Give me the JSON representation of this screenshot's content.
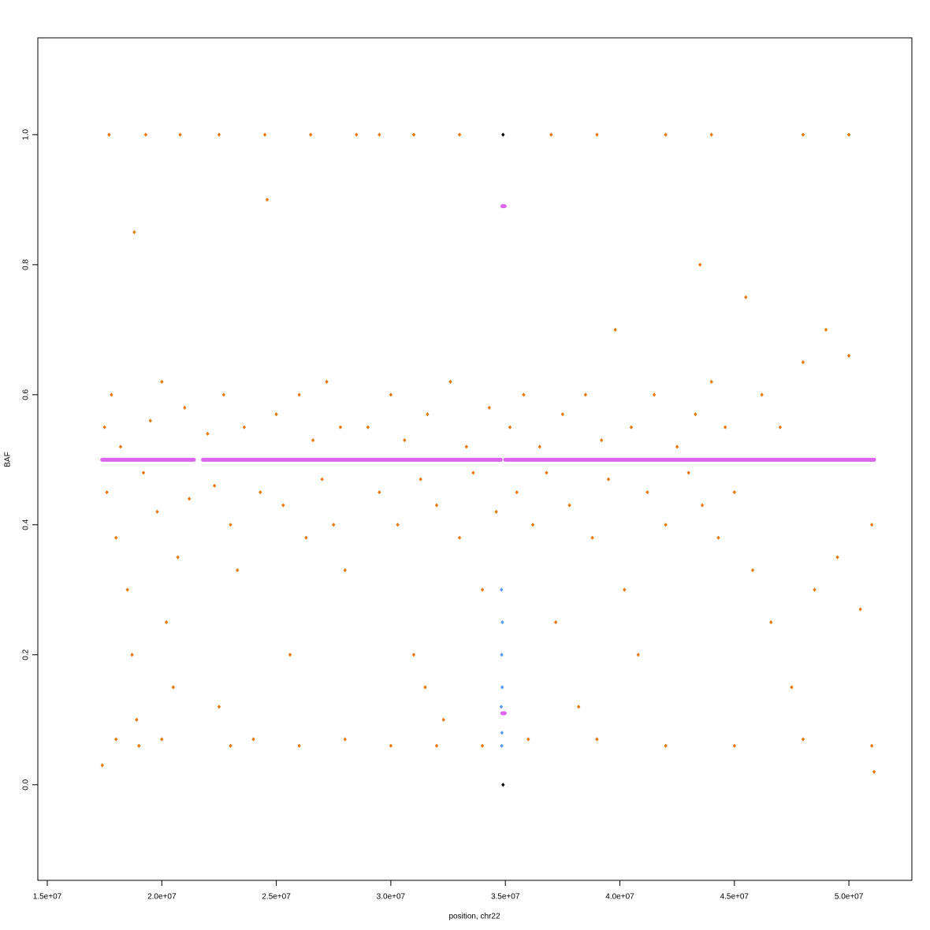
{
  "chart_data": {
    "type": "scatter",
    "xlabel": "position, chr22",
    "ylabel": "BAF",
    "xlim": [
      14587000,
      52750000
    ],
    "ylim": [
      -0.147,
      1.149
    ],
    "xticks": [
      {
        "value": 15000000.0,
        "label": "1.5e+07"
      },
      {
        "value": 20000000.0,
        "label": "2.0e+07"
      },
      {
        "value": 25000000.0,
        "label": "2.5e+07"
      },
      {
        "value": 30000000.0,
        "label": "3.0e+07"
      },
      {
        "value": 35000000.0,
        "label": "3.5e+07"
      },
      {
        "value": 40000000.0,
        "label": "4.0e+07"
      },
      {
        "value": 45000000.0,
        "label": "4.5e+07"
      },
      {
        "value": 50000000.0,
        "label": "5.0e+07"
      }
    ],
    "yticks": [
      {
        "value": 0,
        "label": "0.0"
      },
      0.2,
      0.4,
      0.6,
      0.8,
      {
        "value": 1,
        "label": "1.0"
      }
    ],
    "series": [
      {
        "color": "#e8780c",
        "x": [
          17500000.0,
          17600000.0,
          17800000.0,
          18000000.0,
          18200000.0,
          18500000.0,
          18700000.0,
          18800000.0,
          18900000.0,
          19000000.0,
          19200000.0,
          19500000.0,
          19800000.0,
          20000000.0,
          20200000.0,
          20500000.0,
          20700000.0,
          21000000.0,
          21200000.0,
          17700000.0,
          19300000.0,
          20800000.0,
          18000000.0,
          20000000.0,
          22000000.0,
          22300000.0,
          22500000.0,
          22700000.0,
          23000000.0,
          23300000.0,
          23600000.0,
          24000000.0,
          24300000.0,
          24600000.0,
          25000000.0,
          25300000.0,
          25600000.0,
          26000000.0,
          26300000.0,
          26600000.0,
          27000000.0,
          27200000.0,
          27500000.0,
          27800000.0,
          28000000.0,
          22500000.0,
          24500000.0,
          26500000.0,
          28500000.0,
          23000000.0,
          26000000.0,
          28000000.0,
          29000000.0,
          29500000.0,
          30000000.0,
          30300000.0,
          30600000.0,
          31000000.0,
          31300000.0,
          31600000.0,
          32000000.0,
          32300000.0,
          32600000.0,
          33000000.0,
          33300000.0,
          33600000.0,
          34000000.0,
          34300000.0,
          34600000.0,
          29500000.0,
          31000000.0,
          33000000.0,
          30000000.0,
          32000000.0,
          34000000.0,
          31500000.0,
          35200000.0,
          35500000.0,
          35800000.0,
          36200000.0,
          36500000.0,
          36800000.0,
          37200000.0,
          37500000.0,
          37800000.0,
          38200000.0,
          38500000.0,
          38800000.0,
          39200000.0,
          39500000.0,
          39800000.0,
          40200000.0,
          40500000.0,
          40800000.0,
          41200000.0,
          41500000.0,
          42000000.0,
          42500000.0,
          43000000.0,
          43300000.0,
          43600000.0,
          44000000.0,
          44300000.0,
          44600000.0,
          45000000.0,
          45500000.0,
          45800000.0,
          46200000.0,
          46600000.0,
          47000000.0,
          47500000.0,
          48000000.0,
          48500000.0,
          49000000.0,
          49500000.0,
          50000000.0,
          50500000.0,
          51000000.0,
          37000000.0,
          39000000.0,
          42000000.0,
          44000000.0,
          48000000.0,
          50000000.0,
          36000000.0,
          39000000.0,
          42000000.0,
          45000000.0,
          48000000.0,
          51000000.0,
          51100000.0,
          17400000.0,
          43500000.0
        ],
        "values": [
          0.55,
          0.45,
          0.6,
          0.38,
          0.52,
          0.3,
          0.2,
          0.85,
          0.1,
          0.06,
          0.48,
          0.56,
          0.42,
          0.62,
          0.25,
          0.15,
          0.35,
          0.58,
          0.44,
          1.0,
          1.0,
          1.0,
          0.07,
          0.07,
          0.54,
          0.46,
          0.12,
          0.6,
          0.4,
          0.33,
          0.55,
          0.07,
          0.45,
          0.9,
          0.57,
          0.43,
          0.2,
          0.6,
          0.38,
          0.53,
          0.47,
          0.62,
          0.4,
          0.55,
          0.33,
          1.0,
          1.0,
          1.0,
          1.0,
          0.06,
          0.06,
          0.07,
          0.55,
          0.45,
          0.6,
          0.4,
          0.53,
          0.2,
          0.47,
          0.57,
          0.43,
          0.1,
          0.62,
          0.38,
          0.52,
          0.48,
          0.3,
          0.58,
          0.42,
          1.0,
          1.0,
          1.0,
          0.06,
          0.06,
          0.06,
          0.15,
          0.55,
          0.45,
          0.6,
          0.4,
          0.52,
          0.48,
          0.25,
          0.57,
          0.43,
          0.12,
          0.6,
          0.38,
          0.53,
          0.47,
          0.7,
          0.3,
          0.55,
          0.2,
          0.45,
          0.6,
          0.4,
          0.52,
          0.48,
          0.57,
          0.43,
          0.62,
          0.38,
          0.55,
          0.45,
          0.75,
          0.33,
          0.6,
          0.25,
          0.55,
          0.15,
          0.65,
          0.3,
          0.7,
          0.35,
          0.66,
          0.27,
          0.4,
          1.0,
          1.0,
          1.0,
          1.0,
          1.0,
          1.0,
          0.07,
          0.07,
          0.06,
          0.06,
          0.07,
          0.06,
          0.02,
          0.03,
          0.8
        ]
      },
      {
        "color": "#5599ff",
        "x": [
          34830000.0,
          34870000.0,
          34840000.0,
          34860000.0,
          34820000.0,
          34850000.0,
          34840000.0
        ],
        "values": [
          0.3,
          0.25,
          0.2,
          0.15,
          0.12,
          0.08,
          0.06
        ]
      },
      {
        "color": "#000000",
        "x": [
          34900000.0,
          34900000.0
        ],
        "values": [
          1.0,
          0.0
        ]
      }
    ],
    "segments": {
      "color": "#dd66ee",
      "items": [
        {
          "x": [
            17400000.0,
            21400000.0
          ],
          "y": 0.5
        },
        {
          "x": [
            21800000.0,
            34800000.0
          ],
          "y": 0.5
        },
        {
          "x": [
            35000000.0,
            51100000.0
          ],
          "y": 0.5
        },
        {
          "x": [
            34870000.0,
            34970000.0
          ],
          "y": 0.89
        },
        {
          "x": [
            34870000.0,
            34970000.0
          ],
          "y": 0.11
        }
      ]
    }
  }
}
